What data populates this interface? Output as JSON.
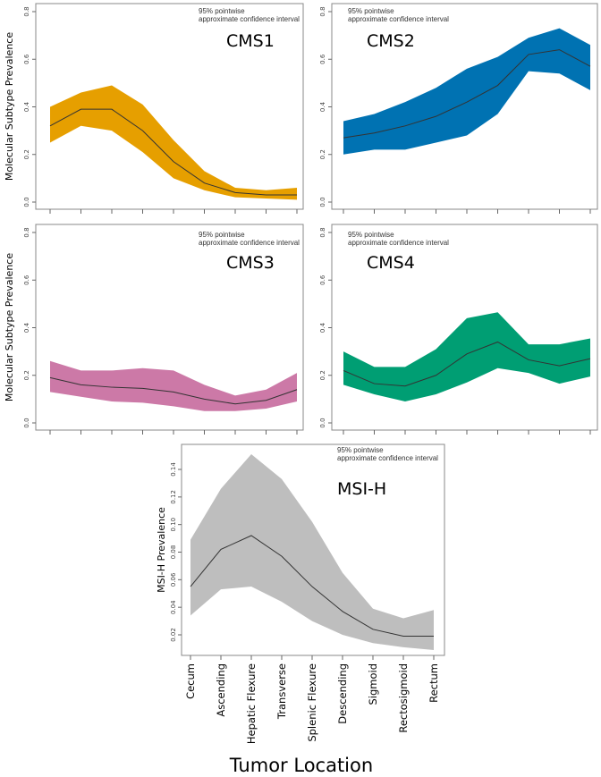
{
  "chart_data": {
    "type": "area",
    "xlabel": "Tumor Location",
    "categories": [
      "Cecum",
      "Ascending",
      "Hepatic Flexure",
      "Transverse",
      "Splenic Flexure",
      "Descending",
      "Sigmoid",
      "Rectosigmoid",
      "Rectum"
    ],
    "ci_note_line1": "95% pointwise",
    "ci_note_line2": "approximate confidence interval",
    "panels": [
      {
        "title": "CMS1",
        "ylabel": "Molecular Subtype Prevalence",
        "color": "#E69F00",
        "ylim": [
          0,
          0.8
        ],
        "yticks": [
          "0.0",
          "0.2",
          "0.4",
          "0.6",
          "0.8"
        ],
        "mean": [
          0.32,
          0.39,
          0.39,
          0.3,
          0.17,
          0.08,
          0.04,
          0.03,
          0.03
        ],
        "upper": [
          0.4,
          0.46,
          0.49,
          0.41,
          0.26,
          0.13,
          0.06,
          0.05,
          0.06
        ],
        "lower": [
          0.25,
          0.32,
          0.3,
          0.21,
          0.1,
          0.05,
          0.02,
          0.015,
          0.01
        ]
      },
      {
        "title": "CMS2",
        "ylabel": "",
        "color": "#0072B2",
        "ylim": [
          0,
          0.8
        ],
        "yticks": [
          "0.0",
          "0.2",
          "0.4",
          "0.6",
          "0.8"
        ],
        "mean": [
          0.27,
          0.29,
          0.32,
          0.36,
          0.42,
          0.49,
          0.62,
          0.64,
          0.57
        ],
        "upper": [
          0.34,
          0.37,
          0.42,
          0.48,
          0.56,
          0.61,
          0.69,
          0.73,
          0.66
        ],
        "lower": [
          0.2,
          0.22,
          0.22,
          0.25,
          0.28,
          0.37,
          0.55,
          0.54,
          0.47
        ]
      },
      {
        "title": "CMS3",
        "ylabel": "Molecular Subtype Prevalence",
        "color": "#CC79A7",
        "ylim": [
          0,
          0.8
        ],
        "yticks": [
          "0.0",
          "0.2",
          "0.4",
          "0.6",
          "0.8"
        ],
        "mean": [
          0.19,
          0.16,
          0.15,
          0.145,
          0.13,
          0.1,
          0.08,
          0.095,
          0.14
        ],
        "upper": [
          0.26,
          0.22,
          0.22,
          0.23,
          0.22,
          0.16,
          0.115,
          0.14,
          0.21
        ],
        "lower": [
          0.13,
          0.11,
          0.09,
          0.085,
          0.07,
          0.05,
          0.05,
          0.06,
          0.09
        ]
      },
      {
        "title": "CMS4",
        "ylabel": "",
        "color": "#009E73",
        "ylim": [
          0,
          0.8
        ],
        "yticks": [
          "0.0",
          "0.2",
          "0.4",
          "0.6",
          "0.8"
        ],
        "mean": [
          0.22,
          0.165,
          0.155,
          0.2,
          0.29,
          0.34,
          0.265,
          0.24,
          0.27
        ],
        "upper": [
          0.3,
          0.235,
          0.235,
          0.31,
          0.44,
          0.465,
          0.33,
          0.33,
          0.355
        ],
        "lower": [
          0.16,
          0.12,
          0.09,
          0.12,
          0.17,
          0.23,
          0.21,
          0.165,
          0.195
        ]
      },
      {
        "title": "MSI-H",
        "ylabel": "MSI-H Prevalence",
        "color": "#BEBEBE",
        "ylim": [
          0.02,
          0.14
        ],
        "yticks": [
          "0.02",
          "0.04",
          "0.06",
          "0.08",
          "0.10",
          "0.12",
          "0.14"
        ],
        "mean": [
          0.055,
          0.082,
          0.092,
          0.077,
          0.055,
          0.037,
          0.024,
          0.019,
          0.019
        ],
        "upper": [
          0.089,
          0.126,
          0.151,
          0.133,
          0.102,
          0.065,
          0.039,
          0.032,
          0.038
        ],
        "lower": [
          0.034,
          0.053,
          0.055,
          0.044,
          0.03,
          0.02,
          0.014,
          0.011,
          0.009
        ]
      }
    ]
  }
}
